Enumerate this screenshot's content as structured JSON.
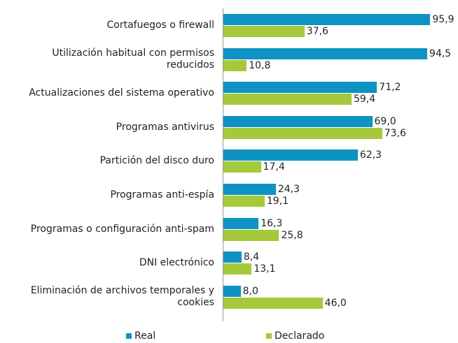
{
  "chart_data": {
    "type": "bar",
    "orientation": "horizontal",
    "categories": [
      "Cortafuegos o firewall",
      "Utilización habitual con permisos reducidos",
      "Actualizaciones del sistema operativo",
      "Programas antivirus",
      "Partición del disco duro",
      "Programas anti-espía",
      "Programas o configuración anti-spam",
      "DNI electrónico",
      "Eliminación de archivos temporales y cookies"
    ],
    "series": [
      {
        "name": "Real",
        "color": "#0f93c4",
        "values": [
          95.9,
          94.5,
          71.2,
          69.0,
          62.3,
          24.3,
          16.3,
          8.4,
          8.0
        ],
        "value_labels": [
          "95,9",
          "94,5",
          "71,2",
          "69,0",
          "62,3",
          "24,3",
          "16,3",
          "8,4",
          "8,0"
        ]
      },
      {
        "name": "Declarado",
        "color": "#a6c93b",
        "values": [
          37.6,
          10.8,
          59.4,
          73.6,
          17.4,
          19.1,
          25.8,
          13.1,
          46.0
        ],
        "value_labels": [
          "37,6",
          "10,8",
          "59,4",
          "73,6",
          "17,4",
          "19,1",
          "25,8",
          "13,1",
          "46,0"
        ]
      }
    ],
    "xlim": [
      0,
      100
    ],
    "legend": "bottom"
  }
}
